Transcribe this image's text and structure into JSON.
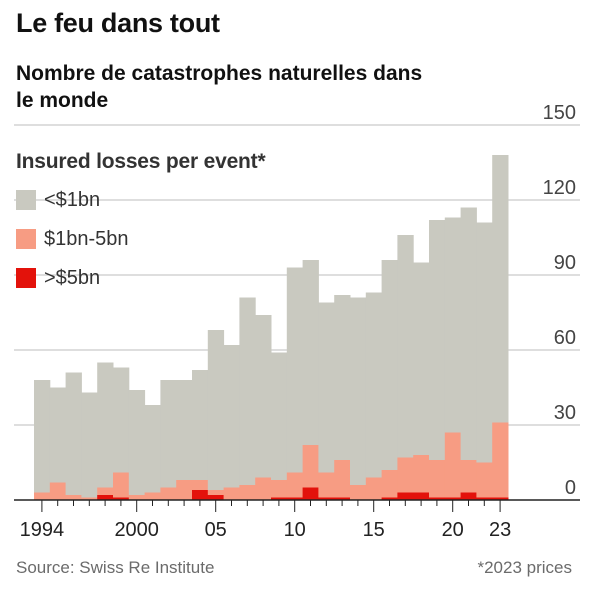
{
  "header": {
    "title": "Le feu dans tout",
    "subtitle": "Nombre de catastrophes naturelles dans le monde"
  },
  "footer": {
    "source": "Source: Swiss Re Institute",
    "note": "*2023 prices"
  },
  "chart_data": {
    "type": "bar",
    "stacked": true,
    "legend_title": "Insured losses per event*",
    "legend_placement": "top-left",
    "x": [
      1994,
      1995,
      1996,
      1997,
      1998,
      1999,
      2000,
      2001,
      2002,
      2003,
      2004,
      2005,
      2006,
      2007,
      2008,
      2009,
      2010,
      2011,
      2012,
      2013,
      2014,
      2015,
      2016,
      2017,
      2018,
      2019,
      2020,
      2021,
      2022,
      2023
    ],
    "x_tick_labels": [
      {
        "x": 1994,
        "label": "1994"
      },
      {
        "x": 2000,
        "label": "2000"
      },
      {
        "x": 2005,
        "label": "05"
      },
      {
        "x": 2010,
        "label": "10"
      },
      {
        "x": 2015,
        "label": "15"
      },
      {
        "x": 2020,
        "label": "20"
      },
      {
        "x": 2023,
        "label": "23"
      }
    ],
    "y_ticks": [
      0,
      30,
      60,
      90,
      120,
      150
    ],
    "ylim": [
      0,
      150
    ],
    "y_axis_position": "right",
    "grid": true,
    "series": [
      {
        "name": ">$5bn",
        "color": "#e3120b",
        "values": [
          0,
          0,
          0,
          0,
          2,
          1,
          0,
          0,
          0,
          0,
          4,
          2,
          0,
          0,
          0,
          1,
          1,
          5,
          1,
          1,
          0,
          0,
          1,
          3,
          3,
          1,
          1,
          3,
          1,
          1
        ]
      },
      {
        "name": "$1bn-5bn",
        "color": "#f79c83",
        "values": [
          3,
          7,
          2,
          1,
          3,
          10,
          2,
          3,
          5,
          8,
          4,
          2,
          5,
          6,
          9,
          7,
          10,
          17,
          10,
          15,
          6,
          9,
          11,
          14,
          15,
          15,
          26,
          13,
          14,
          30
        ]
      },
      {
        "name": "<$1bn",
        "color": "#c9c9c0",
        "values": [
          45,
          38,
          49,
          42,
          50,
          42,
          42,
          35,
          43,
          40,
          44,
          64,
          57,
          75,
          65,
          51,
          82,
          74,
          68,
          66,
          75,
          74,
          84,
          89,
          77,
          96,
          86,
          101,
          96,
          107
        ]
      }
    ]
  }
}
